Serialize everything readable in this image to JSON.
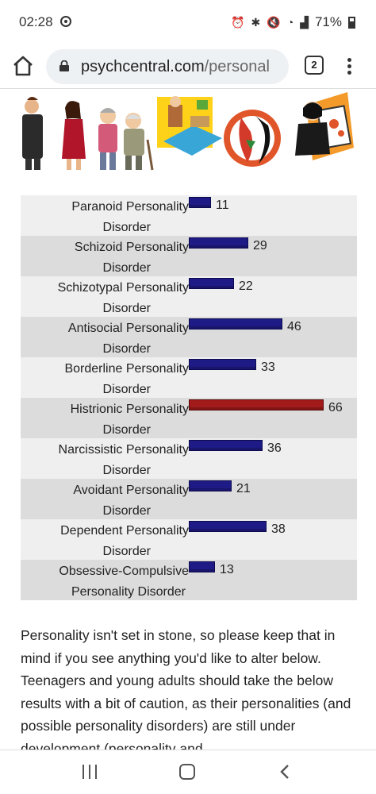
{
  "status": {
    "time": "02:28",
    "battery": "71%"
  },
  "browser": {
    "url_host": "psychcentral.com",
    "url_path": "/personal",
    "tab_count": "2"
  },
  "chart_data": {
    "type": "bar",
    "orientation": "horizontal",
    "categories": [
      "Paranoid Personality Disorder",
      "Schizoid Personality Disorder",
      "Schizotypal Personality Disorder",
      "Antisocial Personality Disorder",
      "Borderline Personality Disorder",
      "Histrionic Personality Disorder",
      "Narcissistic Personality Disorder",
      "Avoidant Personality Disorder",
      "Dependent Personality Disorder",
      "Obsessive-Compulsive Personality Disorder"
    ],
    "label_lines": [
      [
        "Paranoid Personality",
        "Disorder"
      ],
      [
        "Schizoid Personality",
        "Disorder"
      ],
      [
        "Schizotypal Personality",
        "Disorder"
      ],
      [
        "Antisocial Personality",
        "Disorder"
      ],
      [
        "Borderline Personality",
        "Disorder"
      ],
      [
        "Histrionic Personality",
        "Disorder"
      ],
      [
        "Narcissistic Personality",
        "Disorder"
      ],
      [
        "Avoidant Personality",
        "Disorder"
      ],
      [
        "Dependent Personality",
        "Disorder"
      ],
      [
        "Obsessive-Compulsive",
        "Personality Disorder"
      ]
    ],
    "values": [
      11,
      29,
      22,
      46,
      33,
      66,
      36,
      21,
      38,
      13
    ],
    "highlight_index": 5,
    "xlim": [
      0,
      66
    ],
    "colors": {
      "normal": "#1e1b86",
      "highlight": "#a31a1a"
    }
  },
  "paragraph": "Personality isn't set in stone, so please keep that in mind if you see anything you'd like to alter below. Teenagers and young adults should take the below results with a bit of caution, as their personalities (and possible personality disorders) are still under development (personality and"
}
